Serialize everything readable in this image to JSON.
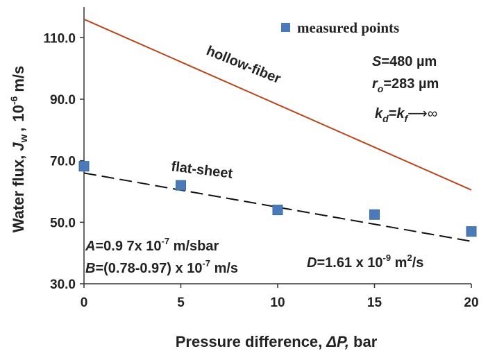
{
  "chart_data": {
    "type": "scatter",
    "xlabel": {
      "main": "Pressure difference,",
      "symbol": "ΔP,",
      "unit": "bar"
    },
    "ylabel": {
      "main": "Water flux,",
      "symbol": "J",
      "sub": "w",
      "sep": ",",
      "unit": "10",
      "exp": "-6",
      "unit_tail": "m/s"
    },
    "xlim": [
      0,
      20
    ],
    "ylim": [
      30,
      120
    ],
    "x_ticks": [
      0,
      5,
      10,
      15,
      20
    ],
    "x_tick_labels": [
      "0",
      "5",
      "10",
      "15",
      "20"
    ],
    "y_ticks": [
      30,
      50,
      70,
      90,
      110
    ],
    "y_tick_labels": [
      "30.0",
      "50.0",
      "70.0",
      "90.0",
      "110.0"
    ],
    "grid": false,
    "legend": {
      "position": "top-right",
      "entries": [
        "measured points"
      ]
    },
    "series": [
      {
        "name": "measured points",
        "kind": "scatter",
        "color": "#4a7ab8",
        "x": [
          0,
          5,
          10,
          15,
          20
        ],
        "y": [
          68.2,
          62.0,
          54.0,
          52.5,
          47.0
        ]
      },
      {
        "name": "hollow-fiber",
        "kind": "line",
        "color": "#b8461b",
        "x": [
          0,
          20
        ],
        "y": [
          116.0,
          60.5
        ]
      },
      {
        "name": "flat-sheet",
        "kind": "dashed-line",
        "color": "#111111",
        "x": [
          0,
          20
        ],
        "y": [
          66.0,
          43.8
        ]
      }
    ],
    "annotations": {
      "hollow_fiber_label": "hollow-fiber",
      "flat_sheet_label": "flat-sheet",
      "s_sym": "S",
      "s_val": "=480 µm",
      "r_sym": "r",
      "r_sub": "o",
      "r_val": "=283 µm",
      "k_d": "k",
      "k_d_sub": "d",
      "k_eq": "=",
      "k_f": "k",
      "k_f_sub": "f",
      "k_tail": "⟶∞",
      "a_sym": "A",
      "a_val": "=0.9 7x 10",
      "a_exp": "-7",
      "a_unit": " m/sbar",
      "b_sym": "B",
      "b_val": "=(0.78-0.97) x 10",
      "b_exp": "-7",
      "b_unit": " m/s",
      "d_sym": "D",
      "d_val": "=1.61 x 10",
      "d_exp": "-9",
      "d_unit": " m",
      "d_unit_exp": "2",
      "d_unit_tail": "/s"
    }
  }
}
